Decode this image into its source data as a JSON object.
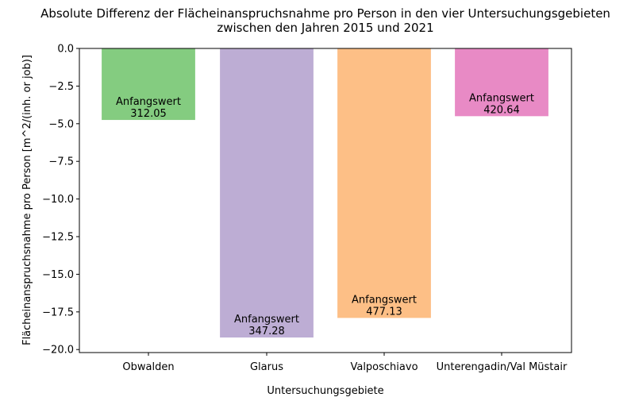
{
  "chart_data": {
    "type": "bar",
    "title": "Absolute Differenz der Flächeinanspruchsnahme pro Person in den vier Untersuchungsgebieten",
    "subtitle": "zwischen den Jahren 2015 und 2021",
    "xlabel": "Untersuchungsgebiete",
    "ylabel": "Flächeinanspruchsnahme pro Person [m^2/(inh. or job)]",
    "ylim": [
      -20.2,
      0
    ],
    "yticks": [
      0.0,
      -2.5,
      -5.0,
      -7.5,
      -10.0,
      -12.5,
      -15.0,
      -17.5,
      -20.0
    ],
    "ytick_labels": [
      "0.0",
      "−2.5",
      "−5.0",
      "−7.5",
      "−10.0",
      "−12.5",
      "−15.0",
      "−17.5",
      "−20.0"
    ],
    "categories": [
      "Obwalden",
      "Glarus",
      "Valposchiavo",
      "Unterengadin/Val Müstair"
    ],
    "values": [
      -4.75,
      -19.2,
      -17.9,
      -4.5
    ],
    "colors": [
      "#84cc80",
      "#bdadd4",
      "#fdbf86",
      "#e88ac5"
    ],
    "annotation_label": "Anfangswert",
    "annotation_values": [
      "312.05",
      "347.28",
      "477.13",
      "420.64"
    ],
    "grid": false,
    "legend": "none"
  }
}
